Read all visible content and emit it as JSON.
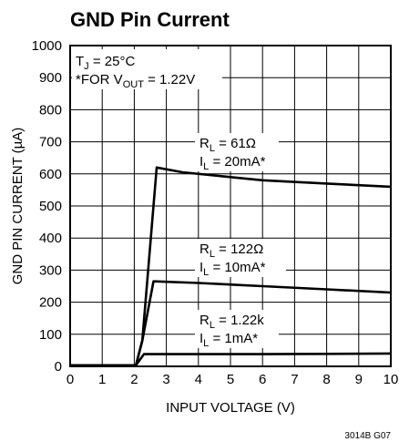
{
  "chart_data": {
    "type": "line",
    "title": "GND Pin Current",
    "xlabel": "INPUT VOLTAGE (V)",
    "ylabel": "GND PIN CURRENT (µA)",
    "xlim": [
      0,
      10
    ],
    "ylim": [
      0,
      1000
    ],
    "x_ticks": [
      "0",
      "1",
      "2",
      "3",
      "4",
      "5",
      "6",
      "7",
      "8",
      "9",
      "10"
    ],
    "y_ticks": [
      "0",
      "100",
      "200",
      "300",
      "400",
      "500",
      "600",
      "700",
      "800",
      "900",
      "1000"
    ],
    "grid": true,
    "series": [
      {
        "label_top": "R_L = 61Ω",
        "label_bottom": "I_L = 20mA*",
        "x": [
          0,
          2.05,
          2.25,
          2.7,
          3.5,
          5,
          6,
          8,
          10
        ],
        "y": [
          3,
          3,
          80,
          620,
          605,
          590,
          580,
          570,
          560
        ]
      },
      {
        "label_top": "R_L = 122Ω",
        "label_bottom": "I_L = 10mA*",
        "x": [
          0,
          2.05,
          2.25,
          2.6,
          4,
          6,
          8,
          10
        ],
        "y": [
          3,
          3,
          80,
          265,
          260,
          250,
          240,
          230
        ]
      },
      {
        "label_top": "R_L = 1.22k",
        "label_bottom": "I_L = 1mA*",
        "x": [
          0,
          2.05,
          2.3,
          4,
          6,
          8,
          10
        ],
        "y": [
          3,
          3,
          38,
          38,
          38,
          39,
          40
        ]
      }
    ],
    "annotations": [
      "T_J = 25°C",
      "*FOR V_OUT = 1.22V"
    ]
  },
  "figure_code": "3014B G07"
}
